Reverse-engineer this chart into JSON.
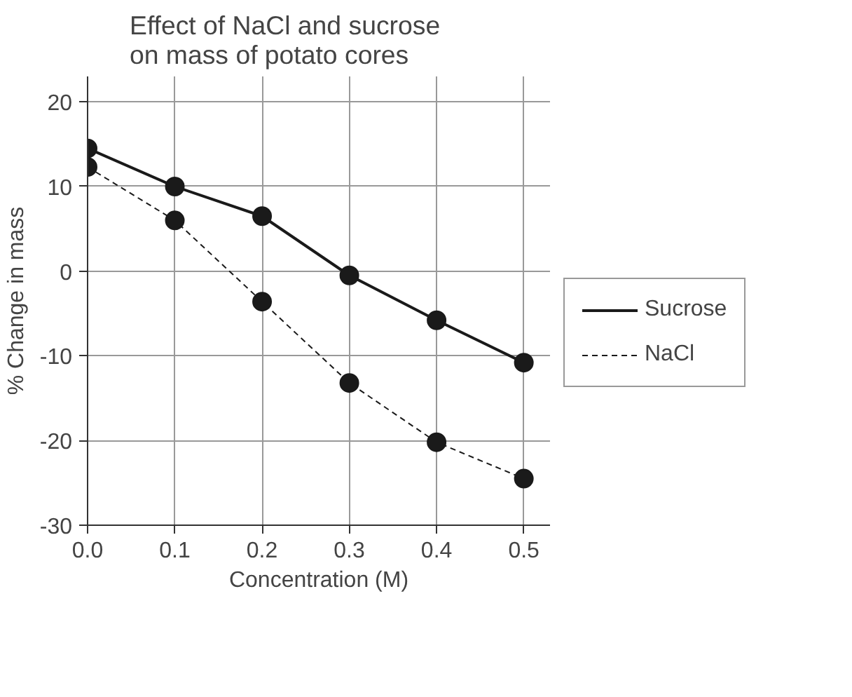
{
  "chart_data": {
    "type": "line",
    "title": "Effect of NaCl and sucrose\non mass of potato cores",
    "xlabel": "Concentration (M)",
    "ylabel": "% Change in mass",
    "x": [
      0.0,
      0.1,
      0.2,
      0.3,
      0.4,
      0.5
    ],
    "series": [
      {
        "name": "Sucrose",
        "color": "#1a1a1a",
        "values": [
          14.5,
          10,
          6.5,
          -0.5,
          -5.8,
          -10.8
        ],
        "line_style": "solid"
      },
      {
        "name": "NaCl",
        "color": "#1a1a1a",
        "values": [
          12.3,
          6,
          -3.6,
          -13.2,
          -20.2,
          -24.5
        ],
        "line_style": "dashed"
      }
    ],
    "xlim": [
      0,
      0.53
    ],
    "ylim": [
      -30,
      23
    ],
    "xticks": [
      {
        "value": 0,
        "label": "0.0"
      },
      0.1,
      0.2,
      0.3,
      0.4,
      0.5
    ],
    "yticks": [
      -30,
      -20,
      -10,
      0,
      10,
      20
    ],
    "grid": true,
    "legend": "right",
    "marker": "circle"
  }
}
